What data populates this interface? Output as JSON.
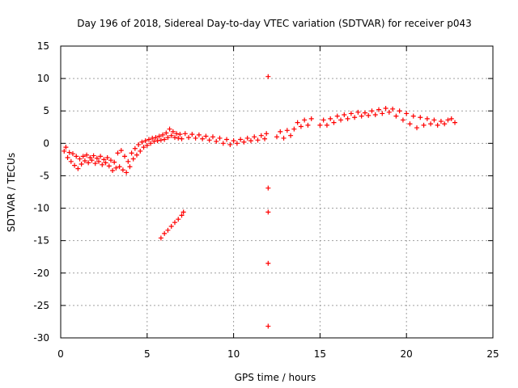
{
  "chart_data": {
    "type": "scatter",
    "title": "Day 196 of 2018, Sidereal Day-to-day VTEC variation (SDTVAR) for receiver p043",
    "xlabel": "GPS time / hours",
    "ylabel": "SDTVAR / TECUs",
    "xlim": [
      0,
      25
    ],
    "ylim": [
      -30,
      15
    ],
    "xticks": [
      0,
      5,
      10,
      15,
      20,
      25
    ],
    "yticks": [
      15,
      10,
      5,
      0,
      -5,
      -10,
      -15,
      -20,
      -25,
      -30
    ],
    "grid": true,
    "marker": "plus",
    "series_color": "#ff0000",
    "series": [
      {
        "name": "SDTVAR",
        "points": [
          [
            0.2,
            -1.2
          ],
          [
            0.3,
            -0.6
          ],
          [
            0.4,
            -2.2
          ],
          [
            0.5,
            -1.4
          ],
          [
            0.6,
            -2.8
          ],
          [
            0.7,
            -1.6
          ],
          [
            0.8,
            -3.4
          ],
          [
            0.9,
            -2.0
          ],
          [
            1.0,
            -3.9
          ],
          [
            1.1,
            -2.4
          ],
          [
            1.2,
            -3.2
          ],
          [
            1.3,
            -2.0
          ],
          [
            1.4,
            -2.7
          ],
          [
            1.5,
            -1.8
          ],
          [
            1.6,
            -3.0
          ],
          [
            1.7,
            -2.2
          ],
          [
            1.8,
            -2.6
          ],
          [
            1.9,
            -1.9
          ],
          [
            2.0,
            -3.1
          ],
          [
            2.1,
            -2.3
          ],
          [
            2.2,
            -2.8
          ],
          [
            2.3,
            -2.0
          ],
          [
            2.4,
            -3.3
          ],
          [
            2.5,
            -2.5
          ],
          [
            2.6,
            -3.0
          ],
          [
            2.7,
            -2.2
          ],
          [
            2.8,
            -3.5
          ],
          [
            2.9,
            -2.6
          ],
          [
            3.0,
            -4.2
          ],
          [
            3.1,
            -2.9
          ],
          [
            3.2,
            -3.8
          ],
          [
            3.3,
            -1.5
          ],
          [
            3.4,
            -3.6
          ],
          [
            3.5,
            -1.1
          ],
          [
            3.6,
            -4.1
          ],
          [
            3.7,
            -2.0
          ],
          [
            3.8,
            -4.5
          ],
          [
            3.9,
            -2.8
          ],
          [
            4.0,
            -3.6
          ],
          [
            4.1,
            -1.5
          ],
          [
            4.2,
            -2.4
          ],
          [
            4.3,
            -0.8
          ],
          [
            4.4,
            -1.8
          ],
          [
            4.5,
            -0.2
          ],
          [
            4.6,
            -1.2
          ],
          [
            4.7,
            0.2
          ],
          [
            4.8,
            -0.6
          ],
          [
            4.9,
            0.4
          ],
          [
            5.0,
            -0.3
          ],
          [
            5.1,
            0.6
          ],
          [
            5.2,
            0.0
          ],
          [
            5.3,
            0.8
          ],
          [
            5.4,
            0.3
          ],
          [
            5.5,
            0.9
          ],
          [
            5.6,
            0.4
          ],
          [
            5.7,
            1.1
          ],
          [
            5.8,
            0.5
          ],
          [
            5.9,
            1.3
          ],
          [
            6.0,
            0.6
          ],
          [
            6.1,
            1.6
          ],
          [
            6.2,
            0.9
          ],
          [
            6.3,
            2.2
          ],
          [
            6.4,
            1.2
          ],
          [
            6.5,
            1.8
          ],
          [
            6.6,
            0.9
          ],
          [
            6.7,
            1.5
          ],
          [
            6.8,
            0.8
          ],
          [
            6.9,
            1.4
          ],
          [
            7.0,
            0.7
          ],
          [
            7.2,
            1.5
          ],
          [
            7.4,
            0.9
          ],
          [
            7.6,
            1.4
          ],
          [
            7.8,
            0.8
          ],
          [
            8.0,
            1.3
          ],
          [
            8.2,
            0.7
          ],
          [
            8.4,
            1.1
          ],
          [
            8.6,
            0.5
          ],
          [
            8.8,
            1.0
          ],
          [
            9.0,
            0.3
          ],
          [
            9.2,
            0.8
          ],
          [
            9.4,
            0.0
          ],
          [
            9.6,
            0.6
          ],
          [
            9.8,
            -0.2
          ],
          [
            10.0,
            0.4
          ],
          [
            10.2,
            0.0
          ],
          [
            10.4,
            0.6
          ],
          [
            10.6,
            0.2
          ],
          [
            10.8,
            0.8
          ],
          [
            11.0,
            0.4
          ],
          [
            11.2,
            1.0
          ],
          [
            11.4,
            0.5
          ],
          [
            11.6,
            1.2
          ],
          [
            11.8,
            0.7
          ],
          [
            11.9,
            1.5
          ],
          [
            12.0,
            10.3
          ],
          [
            12.0,
            -6.9
          ],
          [
            12.0,
            -10.6
          ],
          [
            12.0,
            -18.5
          ],
          [
            12.0,
            -28.2
          ],
          [
            12.5,
            1.0
          ],
          [
            12.7,
            1.8
          ],
          [
            12.9,
            0.8
          ],
          [
            13.1,
            2.0
          ],
          [
            13.3,
            1.2
          ],
          [
            13.5,
            2.2
          ],
          [
            13.7,
            3.2
          ],
          [
            13.9,
            2.6
          ],
          [
            14.1,
            3.6
          ],
          [
            14.3,
            2.8
          ],
          [
            14.5,
            3.8
          ],
          [
            15.0,
            2.8
          ],
          [
            15.2,
            3.6
          ],
          [
            15.4,
            2.8
          ],
          [
            15.6,
            3.8
          ],
          [
            15.8,
            3.2
          ],
          [
            16.0,
            4.2
          ],
          [
            16.2,
            3.6
          ],
          [
            16.4,
            4.4
          ],
          [
            16.6,
            3.8
          ],
          [
            16.8,
            4.6
          ],
          [
            17.0,
            4.0
          ],
          [
            17.2,
            4.8
          ],
          [
            17.4,
            4.2
          ],
          [
            17.6,
            4.7
          ],
          [
            17.8,
            4.3
          ],
          [
            18.0,
            5.0
          ],
          [
            18.2,
            4.4
          ],
          [
            18.4,
            5.2
          ],
          [
            18.6,
            4.6
          ],
          [
            18.8,
            5.4
          ],
          [
            19.0,
            4.8
          ],
          [
            19.2,
            5.3
          ],
          [
            19.4,
            4.2
          ],
          [
            19.6,
            5.0
          ],
          [
            19.8,
            3.6
          ],
          [
            20.0,
            4.6
          ],
          [
            20.2,
            3.0
          ],
          [
            20.4,
            4.2
          ],
          [
            20.6,
            2.4
          ],
          [
            20.8,
            4.0
          ],
          [
            21.0,
            2.8
          ],
          [
            21.2,
            3.8
          ],
          [
            21.4,
            3.0
          ],
          [
            21.6,
            3.6
          ],
          [
            21.8,
            2.8
          ],
          [
            22.0,
            3.4
          ],
          [
            22.2,
            3.0
          ],
          [
            22.4,
            3.6
          ],
          [
            22.6,
            3.8
          ],
          [
            22.8,
            3.2
          ],
          [
            5.8,
            -14.6
          ],
          [
            6.0,
            -13.9
          ],
          [
            6.2,
            -13.4
          ],
          [
            6.4,
            -12.8
          ],
          [
            6.6,
            -12.2
          ],
          [
            6.8,
            -11.7
          ],
          [
            7.0,
            -11.1
          ],
          [
            7.1,
            -10.6
          ]
        ]
      }
    ]
  }
}
